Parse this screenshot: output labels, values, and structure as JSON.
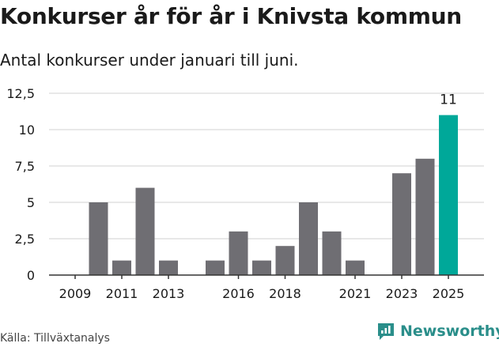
{
  "title": "Konkurser år för år i Knivsta kommun",
  "subtitle": "Antal konkurser under januari till juni.",
  "source": "Källa: Tillväxtanalys",
  "brand": "Newsworthy",
  "colors": {
    "bar": "#6f6e73",
    "highlight": "#00a899",
    "grid": "#d0d0d0",
    "axis": "#333333",
    "brand": "#2a8e8a"
  },
  "chart_data": {
    "type": "bar",
    "categories": [
      "2009",
      "2010",
      "2011",
      "2012",
      "2013",
      "2014",
      "2015",
      "2016",
      "2017",
      "2018",
      "2019",
      "2020",
      "2021",
      "2022",
      "2023",
      "2024",
      "2025"
    ],
    "values": [
      0,
      5,
      1,
      6,
      1,
      0,
      1,
      3,
      1,
      2,
      5,
      3,
      1,
      0,
      7,
      8,
      11
    ],
    "highlight_index": 16,
    "data_labels": [
      {
        "index": 16,
        "text": "11"
      }
    ],
    "x_tick_labels": [
      "2009",
      "2011",
      "2013",
      "2016",
      "2018",
      "2021",
      "2023",
      "2025"
    ],
    "y_ticks": [
      0,
      2.5,
      5,
      7.5,
      10,
      12.5
    ],
    "y_tick_labels": [
      "0",
      "2,5",
      "5",
      "7,5",
      "10",
      "12,5"
    ],
    "ylim": [
      0,
      12.5
    ],
    "grid": true,
    "legend": "none"
  }
}
